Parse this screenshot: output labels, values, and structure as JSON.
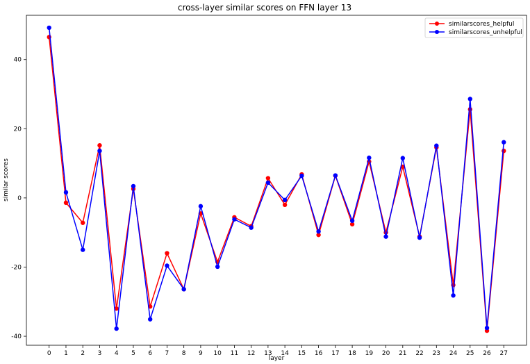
{
  "chart_data": {
    "type": "line",
    "title": "cross-layer similar scores on FFN layer 13",
    "xlabel": "layer",
    "ylabel": "similar scores",
    "x": [
      0,
      1,
      2,
      3,
      4,
      5,
      6,
      7,
      8,
      9,
      10,
      11,
      12,
      13,
      14,
      15,
      16,
      17,
      18,
      19,
      20,
      21,
      22,
      23,
      24,
      25,
      26,
      27
    ],
    "xlim": [
      -1.35,
      28.35
    ],
    "ylim": [
      -42.6,
      52.8
    ],
    "yticks": [
      -40,
      -20,
      0,
      20,
      40
    ],
    "grid": false,
    "legend": "top-right",
    "series": [
      {
        "name": "similarscores_helpful",
        "color": "#ff0000",
        "values": [
          46.5,
          -1.4,
          -7.2,
          15.2,
          -32.0,
          2.6,
          -31.4,
          -16.0,
          -26.4,
          -4.5,
          -18.5,
          -5.6,
          -8.2,
          5.7,
          -2.0,
          6.8,
          -10.7,
          6.4,
          -7.6,
          10.5,
          -10.0,
          9.0,
          -11.2,
          14.6,
          -25.2,
          25.6,
          -38.4,
          13.6
        ]
      },
      {
        "name": "similarscores_unhelpful",
        "color": "#0000ff",
        "values": [
          49.2,
          1.6,
          -15.0,
          13.6,
          -37.8,
          3.4,
          -35.1,
          -19.6,
          -26.4,
          -2.4,
          -19.9,
          -6.2,
          -8.6,
          4.4,
          -0.6,
          6.4,
          -9.7,
          6.5,
          -6.6,
          11.6,
          -11.2,
          11.5,
          -11.5,
          15.1,
          -28.2,
          28.6,
          -37.6,
          16.1
        ]
      }
    ]
  }
}
